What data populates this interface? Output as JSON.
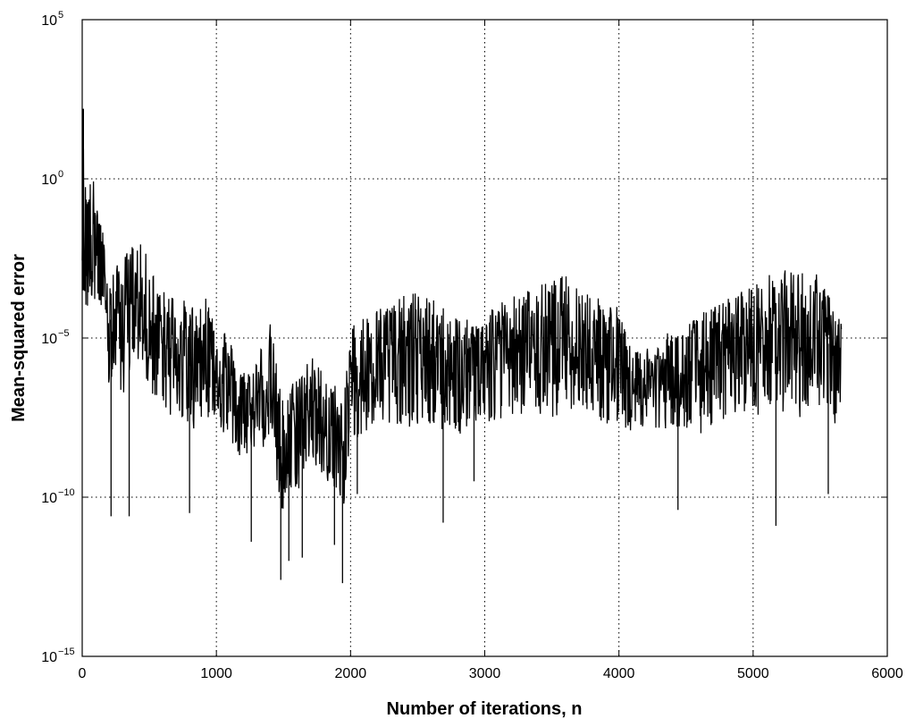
{
  "chart_data": {
    "type": "line",
    "title": "",
    "xlabel": "Number of iterations, n",
    "ylabel": "Mean-squared error",
    "xlim": [
      0,
      6000
    ],
    "ylim_log10": [
      -15,
      5
    ],
    "y_scale": "log",
    "grid": true,
    "legend": "none",
    "x_ticks": [
      "0",
      "1000",
      "2000",
      "3000",
      "4000",
      "5000",
      "6000"
    ],
    "y_ticks": [
      {
        "base": "10",
        "exp": "−15"
      },
      {
        "base": "10",
        "exp": "−10"
      },
      {
        "base": "10",
        "exp": "−5"
      },
      {
        "base": "10",
        "exp": "0"
      },
      {
        "base": "10",
        "exp": "5"
      }
    ],
    "line_color": "#000000",
    "series": [
      {
        "n_last": 5660,
        "envelope_log10_mse": [
          {
            "n": 0,
            "upper": 2.2,
            "median": -1.0,
            "lower": -3.5
          },
          {
            "n": 20,
            "upper": 0.0,
            "median": -1.2,
            "lower": -4.5
          },
          {
            "n": 100,
            "upper": 0.0,
            "median": -1.5,
            "lower": -4.0
          },
          {
            "n": 200,
            "upper": -3.0,
            "median": -4.5,
            "lower": -7.0
          },
          {
            "n": 300,
            "upper": -2.5,
            "median": -4.0,
            "lower": -7.0
          },
          {
            "n": 400,
            "upper": -1.8,
            "median": -3.5,
            "lower": -6.0
          },
          {
            "n": 500,
            "upper": -2.5,
            "median": -4.5,
            "lower": -7.0
          },
          {
            "n": 600,
            "upper": -3.5,
            "median": -5.0,
            "lower": -7.5
          },
          {
            "n": 700,
            "upper": -3.5,
            "median": -5.0,
            "lower": -7.5
          },
          {
            "n": 800,
            "upper": -4.0,
            "median": -5.5,
            "lower": -8.0
          },
          {
            "n": 900,
            "upper": -3.5,
            "median": -5.0,
            "lower": -7.5
          },
          {
            "n": 1000,
            "upper": -4.0,
            "median": -5.5,
            "lower": -8.0
          },
          {
            "n": 1100,
            "upper": -5.0,
            "median": -6.5,
            "lower": -8.5
          },
          {
            "n": 1200,
            "upper": -6.0,
            "median": -7.2,
            "lower": -9.0
          },
          {
            "n": 1300,
            "upper": -5.5,
            "median": -7.0,
            "lower": -8.5
          },
          {
            "n": 1400,
            "upper": -4.5,
            "median": -6.0,
            "lower": -8.5
          },
          {
            "n": 1500,
            "upper": -7.0,
            "median": -9.0,
            "lower": -11.0
          },
          {
            "n": 1600,
            "upper": -6.0,
            "median": -7.5,
            "lower": -10.0
          },
          {
            "n": 1700,
            "upper": -5.5,
            "median": -7.0,
            "lower": -9.0
          },
          {
            "n": 1800,
            "upper": -6.0,
            "median": -7.5,
            "lower": -9.5
          },
          {
            "n": 1900,
            "upper": -6.5,
            "median": -8.0,
            "lower": -10.0
          },
          {
            "n": 1950,
            "upper": -7.0,
            "median": -8.5,
            "lower": -10.5
          },
          {
            "n": 2000,
            "upper": -4.5,
            "median": -6.0,
            "lower": -8.5
          },
          {
            "n": 2200,
            "upper": -4.0,
            "median": -5.5,
            "lower": -8.0
          },
          {
            "n": 2500,
            "upper": -3.5,
            "median": -5.0,
            "lower": -8.0
          },
          {
            "n": 2700,
            "upper": -4.0,
            "median": -5.5,
            "lower": -8.0
          },
          {
            "n": 2900,
            "upper": -4.5,
            "median": -6.0,
            "lower": -8.5
          },
          {
            "n": 3000,
            "upper": -4.0,
            "median": -5.5,
            "lower": -8.0
          },
          {
            "n": 3300,
            "upper": -3.5,
            "median": -5.0,
            "lower": -7.5
          },
          {
            "n": 3600,
            "upper": -3.0,
            "median": -4.8,
            "lower": -7.5
          },
          {
            "n": 3800,
            "upper": -3.5,
            "median": -5.0,
            "lower": -7.5
          },
          {
            "n": 4000,
            "upper": -4.0,
            "median": -5.5,
            "lower": -8.0
          },
          {
            "n": 4100,
            "upper": -5.5,
            "median": -6.5,
            "lower": -8.0
          },
          {
            "n": 4300,
            "upper": -5.0,
            "median": -6.2,
            "lower": -8.0
          },
          {
            "n": 4500,
            "upper": -4.5,
            "median": -6.0,
            "lower": -8.0
          },
          {
            "n": 4700,
            "upper": -4.0,
            "median": -5.5,
            "lower": -8.0
          },
          {
            "n": 4900,
            "upper": -3.5,
            "median": -5.0,
            "lower": -7.5
          },
          {
            "n": 5100,
            "upper": -3.0,
            "median": -4.7,
            "lower": -7.5
          },
          {
            "n": 5300,
            "upper": -2.8,
            "median": -4.5,
            "lower": -7.5
          },
          {
            "n": 5500,
            "upper": -3.0,
            "median": -4.7,
            "lower": -7.5
          },
          {
            "n": 5600,
            "upper": -4.0,
            "median": -5.5,
            "lower": -8.0
          },
          {
            "n": 5660,
            "upper": -4.0,
            "median": -5.5,
            "lower": -7.0
          }
        ],
        "deep_drops_log10_mse": [
          {
            "n": 215,
            "value": -10.6
          },
          {
            "n": 350,
            "value": -10.6
          },
          {
            "n": 800,
            "value": -10.5
          },
          {
            "n": 1260,
            "value": -11.4
          },
          {
            "n": 1480,
            "value": -12.6
          },
          {
            "n": 1540,
            "value": -12.0
          },
          {
            "n": 1640,
            "value": -11.9
          },
          {
            "n": 1880,
            "value": -11.5
          },
          {
            "n": 1940,
            "value": -12.7
          },
          {
            "n": 2050,
            "value": -9.9
          },
          {
            "n": 2690,
            "value": -10.8
          },
          {
            "n": 2920,
            "value": -9.5
          },
          {
            "n": 4440,
            "value": -10.4
          },
          {
            "n": 5170,
            "value": -10.9
          },
          {
            "n": 5560,
            "value": -9.9
          }
        ]
      }
    ]
  }
}
